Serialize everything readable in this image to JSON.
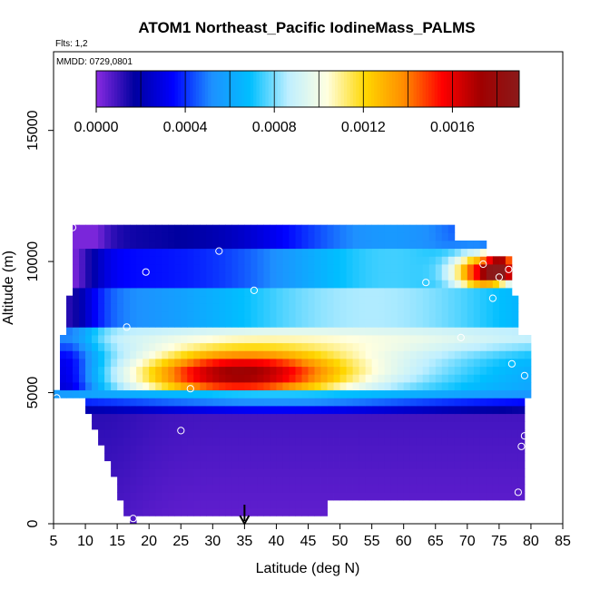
{
  "chart_data": {
    "type": "heatmap",
    "title": "ATOM1 Northeast_Pacific IodineMass_PALMS",
    "flights_note": "Flts: 1,2",
    "date_note": "MMDD: 0729,0801",
    "xlabel": "Latitude (deg N)",
    "ylabel": "Altitude (m)",
    "xlim": [
      5,
      85
    ],
    "ylim": [
      0,
      18000
    ],
    "x_ticks": [
      5,
      10,
      15,
      20,
      25,
      30,
      35,
      40,
      45,
      50,
      55,
      60,
      65,
      70,
      75,
      80,
      85
    ],
    "y_ticks": [
      0,
      5000,
      10000,
      15000
    ],
    "colorbar": {
      "min": 0,
      "max": 0.0019,
      "tick_values": [
        0,
        0.0004,
        0.0008,
        0.0012,
        0.0016
      ],
      "tick_labels": [
        "0.0000",
        "0.0004",
        "0.0008",
        "0.0012",
        "0.0016"
      ],
      "colors": [
        "#8a2be2",
        "#0000a0",
        "#0000ff",
        "#1e90ff",
        "#00bfff",
        "#bfefff",
        "#ffffe0",
        "#ffd700",
        "#ff8c00",
        "#ff0000",
        "#a00000",
        "#8b1a1a"
      ]
    },
    "legend": "top colorbar",
    "grid": false,
    "marker_latitude": 35,
    "profiles": [
      {
        "lat_start": 5,
        "lat_end": 6.5,
        "alt_bottom": 4700,
        "alt_top": 5000,
        "values": [
          0.0003,
          0.0002
        ]
      },
      {
        "lat_start": 6.5,
        "lat_end": 80,
        "alt_bottom": 4700,
        "alt_top": 6500
      }
    ],
    "observations": [
      {
        "lat": 8,
        "alt": 11300
      },
      {
        "lat": 31,
        "alt": 10400
      },
      {
        "lat": 19.5,
        "alt": 9600
      },
      {
        "lat": 36.5,
        "alt": 8900
      },
      {
        "lat": 72.5,
        "alt": 9900
      },
      {
        "lat": 76.5,
        "alt": 9700
      },
      {
        "lat": 75,
        "alt": 9400
      },
      {
        "lat": 63.5,
        "alt": 9200
      },
      {
        "lat": 74,
        "alt": 8600
      },
      {
        "lat": 16.5,
        "alt": 7500
      },
      {
        "lat": 69,
        "alt": 7100
      },
      {
        "lat": 77,
        "alt": 6100
      },
      {
        "lat": 79,
        "alt": 5650
      },
      {
        "lat": 26.5,
        "alt": 5150
      },
      {
        "lat": 5.5,
        "alt": 4800
      },
      {
        "lat": 25,
        "alt": 3550
      },
      {
        "lat": 79,
        "alt": 3350
      },
      {
        "lat": 78.5,
        "alt": 2950
      },
      {
        "lat": 78,
        "alt": 1200
      },
      {
        "lat": 17.5,
        "alt": 200
      }
    ]
  }
}
